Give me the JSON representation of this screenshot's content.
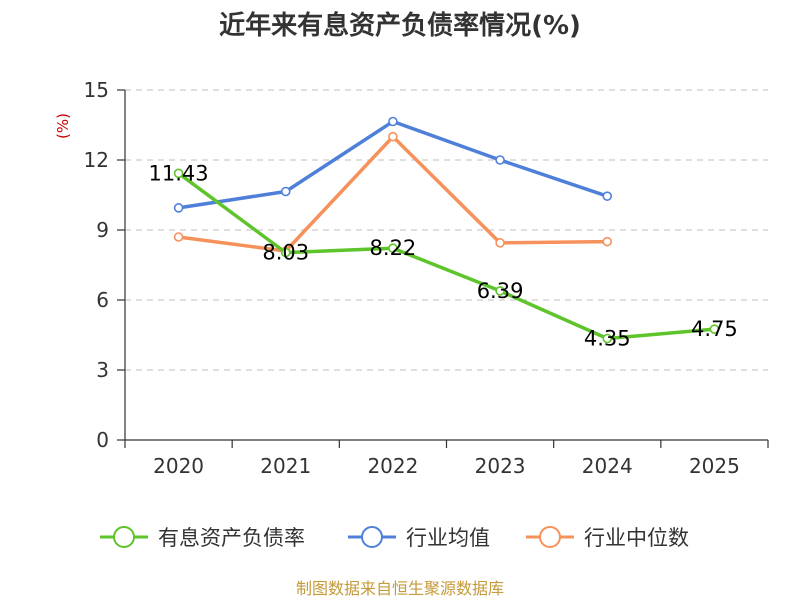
{
  "chart_data": {
    "type": "line",
    "title": "近年来有息资产负债率情况(%)",
    "ylabel": "(%)",
    "xlabel": "",
    "categories": [
      "2020",
      "2021",
      "2022",
      "2023",
      "2024",
      "2025"
    ],
    "ylim": [
      0,
      15
    ],
    "yticks": [
      0,
      3,
      6,
      9,
      12,
      15
    ],
    "grid": true,
    "legend_position": "bottom",
    "series": [
      {
        "name": "有息资产负债率",
        "color": "#5ec42b",
        "values": [
          11.43,
          8.03,
          8.22,
          6.39,
          4.35,
          4.75
        ],
        "labels": [
          "11.43",
          "8.03",
          "8.22",
          "6.39",
          "4.35",
          "4.75"
        ]
      },
      {
        "name": "行业均值",
        "color": "#4f80d9",
        "values": [
          9.95,
          10.65,
          13.65,
          12.0,
          10.45,
          null
        ]
      },
      {
        "name": "行业中位数",
        "color": "#f7915b",
        "values": [
          8.7,
          8.1,
          13.0,
          8.45,
          8.5,
          null
        ]
      }
    ]
  },
  "source": "制图数据来自恒生聚源数据库",
  "colors": {
    "axis": "#333333",
    "grid": "#cccccc",
    "unit_label": "#cc0000",
    "source": "#c49a3a"
  }
}
